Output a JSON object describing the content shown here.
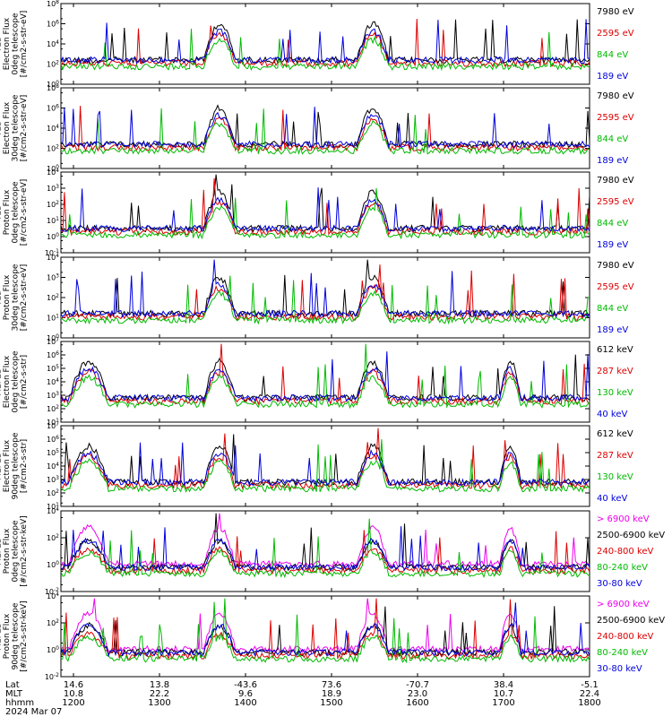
{
  "chart_data": {
    "type": "line",
    "time_axis": {
      "row_labels": [
        "Lat",
        "MLT",
        "hhmm",
        "2024 Mar 07"
      ],
      "ticks": [
        {
          "lat": "14.6",
          "mlt": "10.8",
          "hhmm": "1200"
        },
        {
          "lat": "13.8",
          "mlt": "22.2",
          "hhmm": "1300"
        },
        {
          "lat": "-43.6",
          "mlt": "9.6",
          "hhmm": "1400"
        },
        {
          "lat": "73.6",
          "mlt": "18.9",
          "hhmm": "1500"
        },
        {
          "lat": "-70.7",
          "mlt": "23.0",
          "hhmm": "1600"
        },
        {
          "lat": "38.4",
          "mlt": "10.7",
          "hhmm": "1700"
        },
        {
          "lat": "-5.1",
          "mlt": "22.4",
          "hhmm": "1800"
        }
      ]
    },
    "panels": [
      {
        "ylabel": [
          "TED",
          "Electron Flux",
          "0deg telescope",
          "[#/cm2-s-str-eV]"
        ],
        "ytick_labels": [
          "10^6",
          "10^8"
        ],
        "ylim": [
          6,
          8
        ],
        "legend": [
          {
            "label": "7980 eV",
            "color": "#000000"
          },
          {
            "label": "2595 eV",
            "color": "#dd0000"
          },
          {
            "label": "844 eV",
            "color": "#00bb00"
          },
          {
            "label": "189 eV",
            "color": "#0000dd"
          }
        ],
        "ytick_text": [
          "10^0",
          "10^2",
          "10^4",
          "10^6",
          "10^8"
        ]
      },
      {
        "ylabel": [
          "TED",
          "Electron Flux",
          "30deg telescope",
          "[#/cm2-s-str-eV]"
        ],
        "ytick_text": [
          "10^0",
          "10^2",
          "10^4",
          "10^6",
          "10^8"
        ],
        "legend": [
          {
            "label": "7980 eV",
            "color": "#000000"
          },
          {
            "label": "2595 eV",
            "color": "#dd0000"
          },
          {
            "label": "844 eV",
            "color": "#00bb00"
          },
          {
            "label": "189 eV",
            "color": "#0000dd"
          }
        ]
      },
      {
        "ylabel": [
          "TED",
          "Proton Flux",
          "0deg telescope",
          "[#/cm2-s-str-eV]"
        ],
        "ytick_text": [
          "10^-1",
          "10^0",
          "10^1",
          "10^2",
          "10^3",
          "10^4"
        ],
        "legend": [
          {
            "label": "7980 eV",
            "color": "#000000"
          },
          {
            "label": "2595 eV",
            "color": "#dd0000"
          },
          {
            "label": "844 eV",
            "color": "#00bb00"
          },
          {
            "label": "189 eV",
            "color": "#0000dd"
          }
        ]
      },
      {
        "ylabel": [
          "TED",
          "Proton Flux",
          "30deg telescope",
          "[#/cm2-s-str-eV]"
        ],
        "ytick_text": [
          "10^0",
          "10^1",
          "10^2",
          "10^3",
          "10^4"
        ],
        "legend": [
          {
            "label": "7980 eV",
            "color": "#000000"
          },
          {
            "label": "2595 eV",
            "color": "#dd0000"
          },
          {
            "label": "844 eV",
            "color": "#00bb00"
          },
          {
            "label": "189 eV",
            "color": "#0000dd"
          }
        ]
      },
      {
        "ylabel": [
          "MEPED",
          "Electron Flux",
          "0deg telescope",
          "[#/cm2-s-str]"
        ],
        "ytick_text": [
          "10^1",
          "10^2",
          "10^3",
          "10^4",
          "10^5",
          "10^6",
          "10^7"
        ],
        "legend": [
          {
            "label": "612 keV",
            "color": "#000000"
          },
          {
            "label": "287 keV",
            "color": "#dd0000"
          },
          {
            "label": "130 keV",
            "color": "#00bb00"
          },
          {
            "label": "40 keV",
            "color": "#0000dd"
          }
        ]
      },
      {
        "ylabel": [
          "MEPED",
          "Electron Flux",
          "90deg telescope",
          "[#/cm2-s-str]"
        ],
        "ytick_text": [
          "10^1",
          "10^2",
          "10^3",
          "10^4",
          "10^5",
          "10^6",
          "10^7"
        ],
        "legend": [
          {
            "label": "612 keV",
            "color": "#000000"
          },
          {
            "label": "287 keV",
            "color": "#dd0000"
          },
          {
            "label": "130 keV",
            "color": "#00bb00"
          },
          {
            "label": "40 keV",
            "color": "#0000dd"
          }
        ]
      },
      {
        "ylabel": [
          "MEPED",
          "Proton Flux",
          "0deg telescope",
          "[#/cm2-s-str-keV]"
        ],
        "ytick_text": [
          "10^-2",
          "10^0",
          "10^2",
          "10^4"
        ],
        "legend": [
          {
            "label": "> 6900 keV",
            "color": "#ee00ee"
          },
          {
            "label": "2500-6900 keV",
            "color": "#000000"
          },
          {
            "label": "240-800 keV",
            "color": "#dd0000"
          },
          {
            "label": "80-240 keV",
            "color": "#00bb00"
          },
          {
            "label": "30-80 keV",
            "color": "#0000dd"
          }
        ]
      },
      {
        "ylabel": [
          "MEPED",
          "Proton Flux",
          "90deg telescope",
          "[#/cm2-s-str-keV]"
        ],
        "ytick_text": [
          "10^-2",
          "10^0",
          "10^2",
          "10^4"
        ],
        "legend": [
          {
            "label": "> 6900 keV",
            "color": "#ee00ee"
          },
          {
            "label": "2500-6900 keV",
            "color": "#000000"
          },
          {
            "label": "240-800 keV",
            "color": "#dd0000"
          },
          {
            "label": "80-240 keV",
            "color": "#00bb00"
          },
          {
            "label": "30-80 keV",
            "color": "#0000dd"
          }
        ]
      }
    ]
  }
}
